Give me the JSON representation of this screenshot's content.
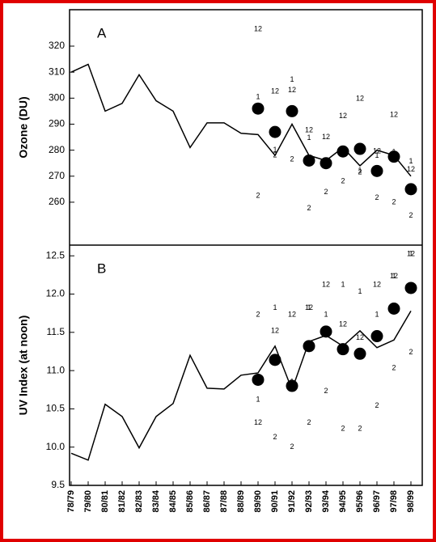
{
  "chart_data": [
    {
      "type": "line",
      "panel_label": "A",
      "y_label": "Ozone (DU)",
      "ylim": [
        243.5,
        334
      ],
      "yticks": [
        260,
        270,
        280,
        290,
        300,
        310,
        320
      ],
      "line_values": [
        310,
        313,
        295,
        298,
        309,
        299,
        295,
        281,
        290.5,
        290.5,
        286.5,
        286,
        278,
        290,
        278,
        276,
        281,
        274,
        280,
        278,
        270
      ],
      "circle_values": [
        null,
        null,
        null,
        null,
        null,
        null,
        null,
        null,
        null,
        null,
        null,
        296,
        287,
        295,
        276,
        275,
        279.5,
        280.5,
        272,
        277.5,
        265
      ],
      "month_series": [
        {
          "name": "1",
          "values": [
            null,
            null,
            null,
            null,
            null,
            null,
            null,
            null,
            null,
            null,
            null,
            300.4,
            280,
            307,
            284.6,
            276,
            280,
            272,
            277.8,
            279.3,
            275.6
          ]
        },
        {
          "name": "2",
          "values": [
            null,
            null,
            null,
            null,
            null,
            null,
            null,
            null,
            null,
            null,
            null,
            262.5,
            278,
            276.5,
            257.6,
            263.8,
            268,
            271.5,
            261.6,
            260,
            254.8
          ]
        },
        {
          "name": "12",
          "values": [
            null,
            null,
            null,
            null,
            null,
            null,
            null,
            null,
            null,
            null,
            null,
            326.5,
            302.6,
            303,
            287.7,
            285,
            293,
            299.8,
            279.6,
            293.6,
            272.5
          ]
        }
      ]
    },
    {
      "type": "line",
      "panel_label": "B",
      "y_label": "UV Index (at noon)",
      "ylim": [
        9.5,
        12.64
      ],
      "yticks": [
        9.5,
        {
          "value": 10,
          "label": "10.0"
        },
        10.5,
        {
          "value": 11,
          "label": "11.0"
        },
        11.5,
        {
          "value": 12,
          "label": "12.0"
        },
        12.5
      ],
      "categories": [
        "78/79",
        "79/80",
        "80/81",
        "81/82",
        "82/83",
        "83/84",
        "84/85",
        "85/86",
        "86/87",
        "87/88",
        "88/89",
        "89/90",
        "90/91",
        "91/92",
        "92/93",
        "93/94",
        "94/95",
        "95/96",
        "96/97",
        "97/98",
        "98/99"
      ],
      "line_values": [
        9.92,
        9.83,
        10.56,
        10.4,
        9.99,
        10.4,
        10.57,
        11.2,
        10.77,
        10.76,
        10.94,
        10.97,
        11.32,
        10.75,
        11.38,
        11.46,
        11.32,
        11.52,
        11.3,
        11.4,
        11.78
      ],
      "circle_values": [
        null,
        null,
        null,
        null,
        null,
        null,
        null,
        null,
        null,
        null,
        null,
        10.88,
        11.14,
        10.8,
        11.32,
        11.51,
        11.28,
        11.22,
        11.45,
        11.81,
        12.08
      ],
      "month_series": [
        {
          "name": "1",
          "values": [
            null,
            null,
            null,
            null,
            null,
            null,
            null,
            null,
            null,
            null,
            null,
            10.62,
            11.82,
            10.85,
            11.82,
            11.73,
            12.12,
            12.03,
            11.73,
            12.23,
            12.52
          ]
        },
        {
          "name": "2",
          "values": [
            null,
            null,
            null,
            null,
            null,
            null,
            null,
            null,
            null,
            null,
            null,
            11.73,
            10.13,
            10.0,
            10.32,
            10.73,
            10.24,
            10.24,
            10.54,
            11.03,
            11.24
          ]
        },
        {
          "name": "12",
          "values": [
            null,
            null,
            null,
            null,
            null,
            null,
            null,
            null,
            null,
            null,
            null,
            10.32,
            11.52,
            11.73,
            11.82,
            12.12,
            11.6,
            11.43,
            12.12,
            12.23,
            12.52
          ]
        }
      ]
    }
  ]
}
